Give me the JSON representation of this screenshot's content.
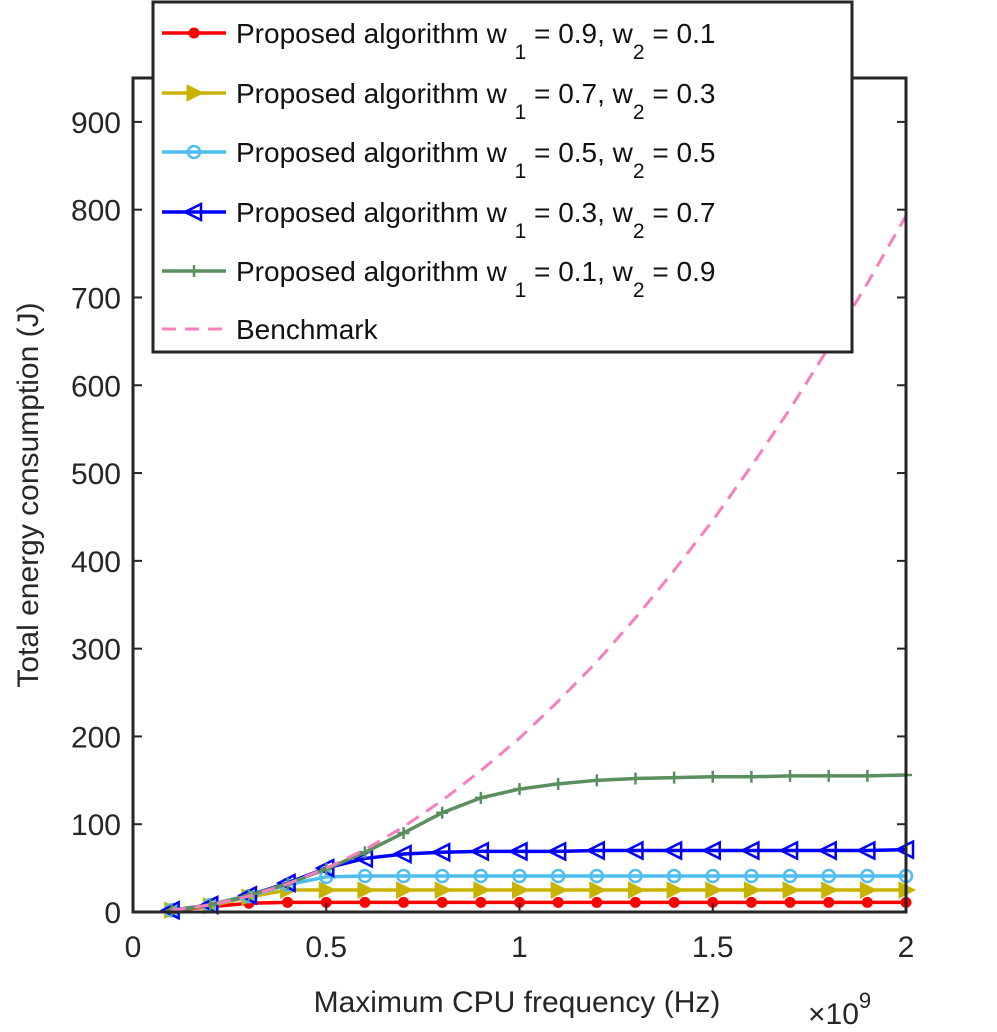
{
  "chart_data": {
    "type": "line",
    "xlabel": "Maximum CPU frequency (Hz)",
    "ylabel": "Total energy consumption (J)",
    "x_exponent_label": "×10",
    "x_exponent_power": "9",
    "xlim": [
      0,
      2
    ],
    "ylim": [
      0,
      950
    ],
    "x_scale": 1000000000,
    "xticks": [
      0,
      0.5,
      1,
      1.5,
      2
    ],
    "xtick_labels": [
      "0",
      "0.5",
      "1",
      "1.5",
      "2"
    ],
    "yticks": [
      0,
      100,
      200,
      300,
      400,
      500,
      600,
      700,
      800,
      900
    ],
    "ytick_labels": [
      "0",
      "100",
      "200",
      "300",
      "400",
      "500",
      "600",
      "700",
      "800",
      "900"
    ],
    "legend_position": "top",
    "x": [
      0.1,
      0.2,
      0.3,
      0.4,
      0.5,
      0.6,
      0.7,
      0.8,
      0.9,
      1.0,
      1.1,
      1.2,
      1.3,
      1.4,
      1.5,
      1.6,
      1.7,
      1.8,
      1.9,
      2.0
    ],
    "series": [
      {
        "name": "Proposed algorithm w1 = 0.9, w2 = 0.1",
        "legend_prefix": "Proposed algorithm w",
        "w1": "0.9",
        "w2": "0.1",
        "color": "#ff0000",
        "marker": "dot",
        "dashed": false,
        "values": [
          2,
          6,
          10,
          11,
          11,
          11,
          11,
          11,
          11,
          11,
          11,
          11,
          11,
          11,
          11,
          11,
          11,
          11,
          11,
          11
        ]
      },
      {
        "name": "Proposed algorithm w1 = 0.7, w2 = 0.3",
        "legend_prefix": "Proposed algorithm w",
        "w1": "0.7",
        "w2": "0.3",
        "color": "#c8b400",
        "marker": "triangle-right",
        "dashed": false,
        "values": [
          2,
          7,
          17,
          25,
          25,
          25,
          25,
          25,
          25,
          25,
          25,
          25,
          25,
          25,
          25,
          25,
          25,
          25,
          25,
          25
        ]
      },
      {
        "name": "Proposed algorithm w1 = 0.5, w2 = 0.5",
        "legend_prefix": "Proposed algorithm w",
        "w1": "0.5",
        "w2": "0.5",
        "color": "#4dbeee",
        "marker": "circle",
        "dashed": false,
        "values": [
          2,
          8,
          18,
          31,
          40,
          41,
          41,
          41,
          41,
          41,
          41,
          41,
          41,
          41,
          41,
          41,
          41,
          41,
          41,
          41
        ]
      },
      {
        "name": "Proposed algorithm w1 = 0.3, w2 = 0.7",
        "legend_prefix": "Proposed algorithm w",
        "w1": "0.3",
        "w2": "0.7",
        "color": "#0000ff",
        "marker": "triangle-left",
        "dashed": false,
        "values": [
          2,
          8,
          19,
          33,
          50,
          61,
          66,
          68,
          69,
          69,
          69,
          70,
          70,
          70,
          70,
          70,
          70,
          70,
          70,
          71
        ]
      },
      {
        "name": "Proposed algorithm w1 = 0.1, w2 = 0.9",
        "legend_prefix": "Proposed algorithm w",
        "w1": "0.1",
        "w2": "0.9",
        "color": "#5a8f5e",
        "marker": "plus",
        "dashed": false,
        "values": [
          2,
          8,
          19,
          32,
          49,
          68,
          90,
          113,
          130,
          140,
          146,
          150,
          152,
          153,
          154,
          154,
          155,
          155,
          155,
          156
        ]
      },
      {
        "name": "Benchmark",
        "legend_prefix": "Benchmark",
        "color": "#f77fbe",
        "marker": "none",
        "dashed": true,
        "values": [
          2,
          8,
          18,
          32,
          50,
          71,
          97,
          127,
          161,
          198,
          240,
          285,
          335,
          389,
          446,
          508,
          573,
          643,
          716,
          793
        ]
      }
    ]
  }
}
